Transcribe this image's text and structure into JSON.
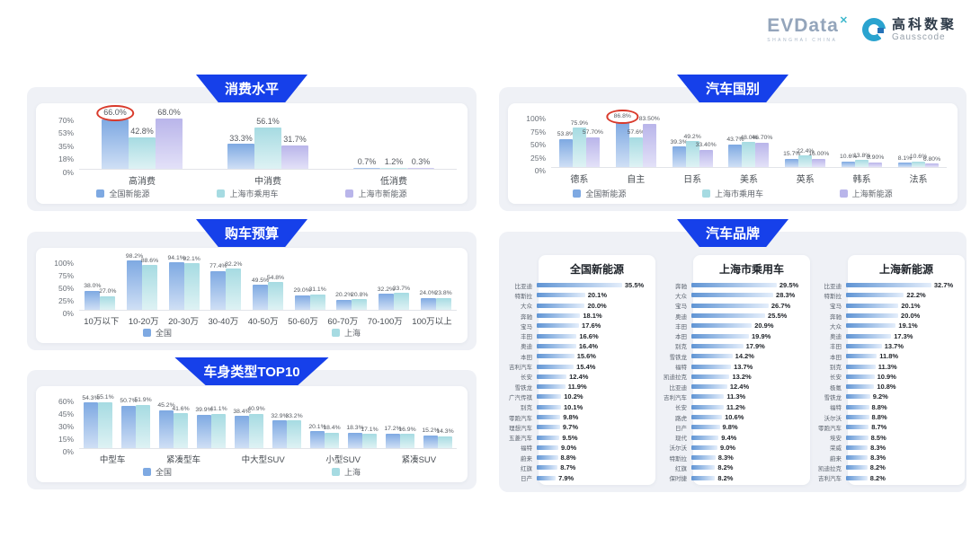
{
  "header": {
    "evdata_logo": "EVData",
    "evdata_mark": "✕",
    "evdata_sub": "SHANGHAI CHINA",
    "gausscode_cn": "高科数聚",
    "gausscode_en": "Gausscode"
  },
  "colors": {
    "banner_blue": "#1640ea",
    "series_blue": "#7ea9e2",
    "series_blue_light": "#cfdff5",
    "series_teal": "#a6dbe2",
    "series_teal_light": "#def2f4",
    "series_purple": "#b9b5ea",
    "series_purple_light": "#e3e1f8",
    "hbar_start": "#5f94d4",
    "hbar_end": "#e4eefb",
    "annotation_red": "#d93a2b"
  },
  "chart_data": [
    {
      "id": "consumption",
      "type": "bar",
      "title": "消费水平",
      "categories": [
        "高消费",
        "中消费",
        "低消费"
      ],
      "category_span": 1,
      "ymax": 70,
      "ytick_values": [
        70,
        53,
        35,
        18,
        0
      ],
      "ytick_labels": [
        "70%",
        "53%",
        "35%",
        "18%",
        "0%"
      ],
      "series": [
        {
          "name": "全国新能源",
          "values": [
            "66.0%",
            "33.3%",
            "0.7%"
          ]
        },
        {
          "name": "上海市乘用车",
          "values": [
            "42.8%",
            "56.1%",
            "1.2%"
          ]
        },
        {
          "name": "上海市新能源",
          "values": [
            "68.0%",
            "31.7%",
            "0.3%"
          ]
        }
      ],
      "annotation": {
        "series": 0,
        "index": 0,
        "shape": "red-ellipse"
      },
      "grid": false,
      "legend_position": "bottom"
    },
    {
      "id": "budget",
      "type": "bar",
      "title": "购车预算",
      "categories": [
        "10万以下",
        "10-20万",
        "20-30万",
        "30-40万",
        "40-50万",
        "50-60万",
        "60-70万",
        "70-100万",
        "100万以上"
      ],
      "category_span": 1,
      "ymax": 100,
      "ytick_values": [
        100,
        75,
        50,
        25,
        0
      ],
      "ytick_labels": [
        "100%",
        "75%",
        "50%",
        "25%",
        "0%"
      ],
      "series": [
        {
          "name": "全国",
          "values": [
            "38.0%",
            "98.2%",
            "94.1%",
            "77.4%",
            "49.5%",
            "29.0%",
            "20.2%",
            "32.2%",
            "24.0%"
          ]
        },
        {
          "name": "上海",
          "values": [
            "27.0%",
            "88.6%",
            "92.1%",
            "82.2%",
            "54.8%",
            "31.1%",
            "20.8%",
            "33.7%",
            "23.8%"
          ]
        }
      ],
      "annotation": null,
      "grid": false,
      "legend_position": "bottom"
    },
    {
      "id": "body",
      "type": "bar",
      "title": "车身类型TOP10",
      "categories": [
        "中型车",
        "紧凑型车",
        "中大型SUV",
        "小型SUV",
        "紧凑SUV"
      ],
      "category_span": 2,
      "ymax": 60,
      "ytick_values": [
        60,
        45,
        30,
        15,
        0
      ],
      "ytick_labels": [
        "60%",
        "45%",
        "30%",
        "15%",
        "0%"
      ],
      "series": [
        {
          "name": "全国",
          "values": [
            "54.3%",
            "50.7%",
            "45.2%",
            "39.9%",
            "38.4%",
            "32.9%",
            "20.1%",
            "18.3%",
            "17.2%",
            "15.2%"
          ]
        },
        {
          "name": "上海",
          "values": [
            "55.1%",
            "51.9%",
            "41.6%",
            "41.1%",
            "40.9%",
            "33.2%",
            "18.4%",
            "17.1%",
            "16.9%",
            "14.3%"
          ]
        }
      ],
      "annotation": null,
      "grid": false,
      "legend_position": "bottom"
    },
    {
      "id": "country",
      "type": "bar",
      "title": "汽车国别",
      "categories": [
        "德系",
        "自主",
        "日系",
        "美系",
        "英系",
        "韩系",
        "法系"
      ],
      "category_span": 1,
      "ymax": 100,
      "ytick_values": [
        100,
        75,
        50,
        25,
        0
      ],
      "ytick_labels": [
        "100%",
        "75%",
        "50%",
        "25%",
        "0%"
      ],
      "series": [
        {
          "name": "全国新能源",
          "values": [
            "53.8%",
            "86.8%",
            "39.3%",
            "43.7%",
            "15.7%",
            "10.6%",
            "8.1%"
          ]
        },
        {
          "name": "上海市乘用车",
          "values": [
            "75.9%",
            "57.6%",
            "49.2%",
            "48.0%",
            "22.4%",
            "13.8%",
            "10.6%"
          ]
        },
        {
          "name": "上海新能源",
          "values": [
            "57.70%",
            "83.50%",
            "33.40%",
            "46.70%",
            "16.00%",
            "8.90%",
            "6.80%"
          ]
        }
      ],
      "annotation": {
        "series": 0,
        "index": 1,
        "shape": "red-ellipse"
      },
      "grid": false,
      "legend_position": "bottom"
    },
    {
      "id": "brands",
      "type": "table",
      "title": "汽车品牌",
      "panels": [
        {
          "title": "全国新能源",
          "max": 35.5,
          "items": [
            [
              "比亚迪",
              "35.5%"
            ],
            [
              "特斯拉",
              "20.1%"
            ],
            [
              "大众",
              "20.0%"
            ],
            [
              "奔驰",
              "18.1%"
            ],
            [
              "宝马",
              "17.6%"
            ],
            [
              "丰田",
              "16.6%"
            ],
            [
              "奥迪",
              "16.4%"
            ],
            [
              "本田",
              "15.6%"
            ],
            [
              "吉利汽车",
              "15.4%"
            ],
            [
              "长安",
              "12.4%"
            ],
            [
              "雪铁龙",
              "11.9%"
            ],
            [
              "广汽传祺",
              "10.2%"
            ],
            [
              "别克",
              "10.1%"
            ],
            [
              "零跑汽车",
              "9.8%"
            ],
            [
              "理想汽车",
              "9.7%"
            ],
            [
              "五菱汽车",
              "9.5%"
            ],
            [
              "福特",
              "9.0%"
            ],
            [
              "蔚来",
              "8.8%"
            ],
            [
              "红旗",
              "8.7%"
            ],
            [
              "日产",
              "7.9%"
            ]
          ]
        },
        {
          "title": "上海市乘用车",
          "max": 29.5,
          "items": [
            [
              "奔驰",
              "29.5%"
            ],
            [
              "大众",
              "28.3%"
            ],
            [
              "宝马",
              "26.7%"
            ],
            [
              "奥迪",
              "25.5%"
            ],
            [
              "丰田",
              "20.9%"
            ],
            [
              "本田",
              "19.9%"
            ],
            [
              "别克",
              "17.9%"
            ],
            [
              "雪铁龙",
              "14.2%"
            ],
            [
              "福特",
              "13.7%"
            ],
            [
              "凯迪拉克",
              "13.2%"
            ],
            [
              "比亚迪",
              "12.4%"
            ],
            [
              "吉利汽车",
              "11.3%"
            ],
            [
              "长安",
              "11.2%"
            ],
            [
              "路虎",
              "10.6%"
            ],
            [
              "日产",
              "9.8%"
            ],
            [
              "现代",
              "9.4%"
            ],
            [
              "沃尔沃",
              "9.0%"
            ],
            [
              "特斯拉",
              "8.3%"
            ],
            [
              "红旗",
              "8.2%"
            ],
            [
              "保时捷",
              "8.2%"
            ]
          ]
        },
        {
          "title": "上海新能源",
          "max": 32.7,
          "items": [
            [
              "比亚迪",
              "32.7%"
            ],
            [
              "特斯拉",
              "22.2%"
            ],
            [
              "宝马",
              "20.1%"
            ],
            [
              "奔驰",
              "20.0%"
            ],
            [
              "大众",
              "19.1%"
            ],
            [
              "奥迪",
              "17.3%"
            ],
            [
              "丰田",
              "13.7%"
            ],
            [
              "本田",
              "11.8%"
            ],
            [
              "别克",
              "11.3%"
            ],
            [
              "长安",
              "10.9%"
            ],
            [
              "极氪",
              "10.8%"
            ],
            [
              "雪铁龙",
              "9.2%"
            ],
            [
              "福特",
              "8.8%"
            ],
            [
              "沃尔沃",
              "8.8%"
            ],
            [
              "零跑汽车",
              "8.7%"
            ],
            [
              "埃安",
              "8.5%"
            ],
            [
              "荣威",
              "8.3%"
            ],
            [
              "蔚来",
              "8.3%"
            ],
            [
              "凯迪拉克",
              "8.2%"
            ],
            [
              "吉利汽车",
              "8.2%"
            ]
          ]
        }
      ]
    }
  ]
}
